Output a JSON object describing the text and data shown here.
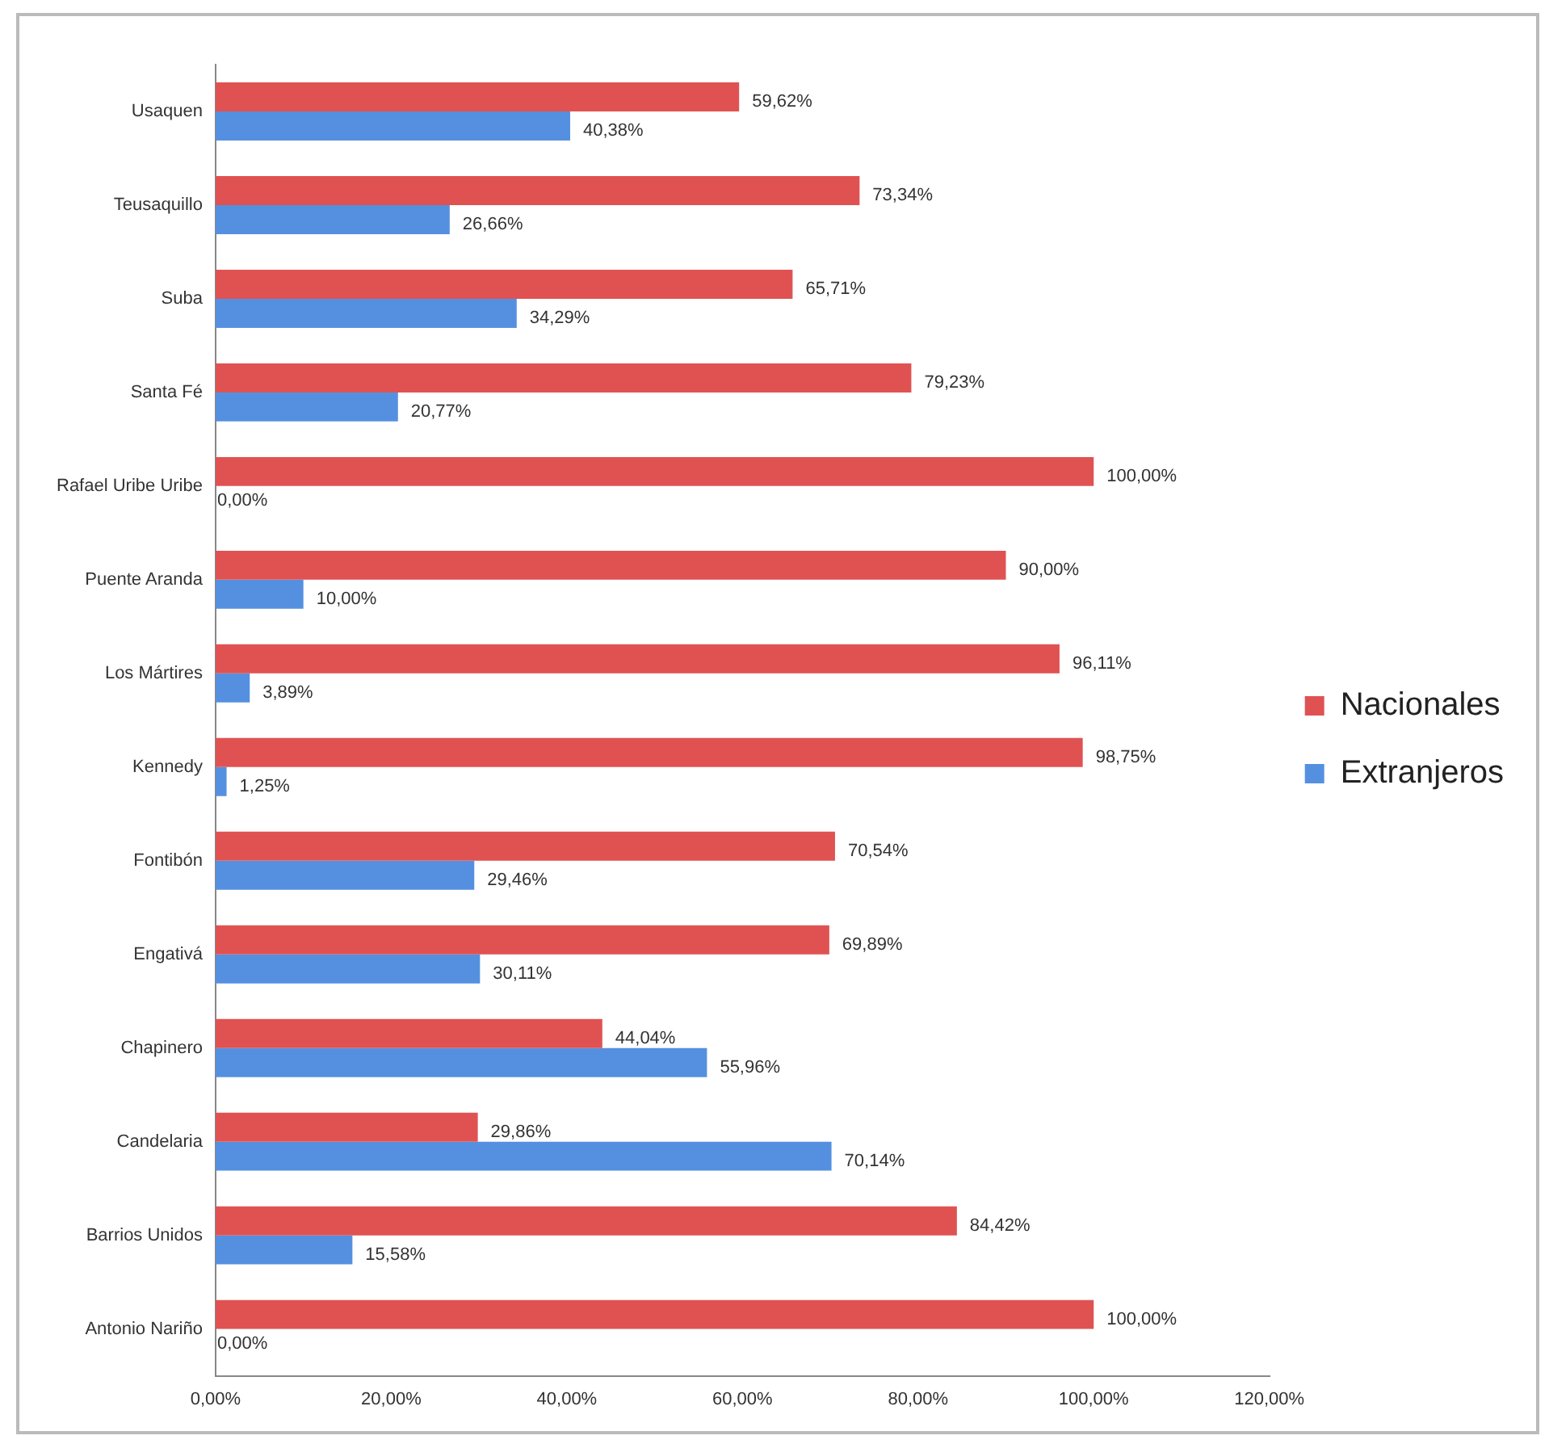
{
  "chart_data": {
    "type": "bar",
    "orientation": "horizontal",
    "categories": [
      "Usaquen",
      "Teusaquillo",
      "Suba",
      "Santa Fé",
      "Rafael Uribe Uribe",
      "Puente Aranda",
      "Los Mártires",
      "Kennedy",
      "Fontibón",
      "Engativá",
      "Chapinero",
      "Candelaria",
      "Barrios Unidos",
      "Antonio Nariño"
    ],
    "series": [
      {
        "name": "Nacionales",
        "color": "#e05252",
        "values": [
          59.62,
          73.34,
          65.71,
          79.23,
          100,
          90,
          96.11,
          98.75,
          70.54,
          69.89,
          44.04,
          29.86,
          84.42,
          100
        ],
        "value_labels": [
          "59,62%",
          "73,34%",
          "65,71%",
          "79,23%",
          "100,00%",
          "90,00%",
          "96,11%",
          "98,75%",
          "70,54%",
          "69,89%",
          "44,04%",
          "29,86%",
          "84,42%",
          "100,00%"
        ]
      },
      {
        "name": "Extranjeros",
        "color": "#5590e0",
        "values": [
          40.38,
          26.66,
          34.29,
          20.77,
          0,
          10,
          3.89,
          1.25,
          29.46,
          30.11,
          55.96,
          70.14,
          15.58,
          0
        ],
        "value_labels": [
          "40,38%",
          "26,66%",
          "34,29%",
          "20,77%",
          "0,00%",
          "10,00%",
          "3,89%",
          "1,25%",
          "29,46%",
          "30,11%",
          "55,96%",
          "70,14%",
          "15,58%",
          "0,00%"
        ]
      }
    ],
    "xlim": [
      0,
      120
    ],
    "xticks": [
      {
        "value": 0,
        "label": "0,00%"
      },
      {
        "value": 20,
        "label": "20,00%"
      },
      {
        "value": 40,
        "label": "40,00%"
      },
      {
        "value": 60,
        "label": "60,00%"
      },
      {
        "value": 80,
        "label": "80,00%"
      },
      {
        "value": 100,
        "label": "100,00%"
      },
      {
        "value": 120,
        "label": "120,00%"
      }
    ],
    "legend": "right",
    "grid": false
  }
}
